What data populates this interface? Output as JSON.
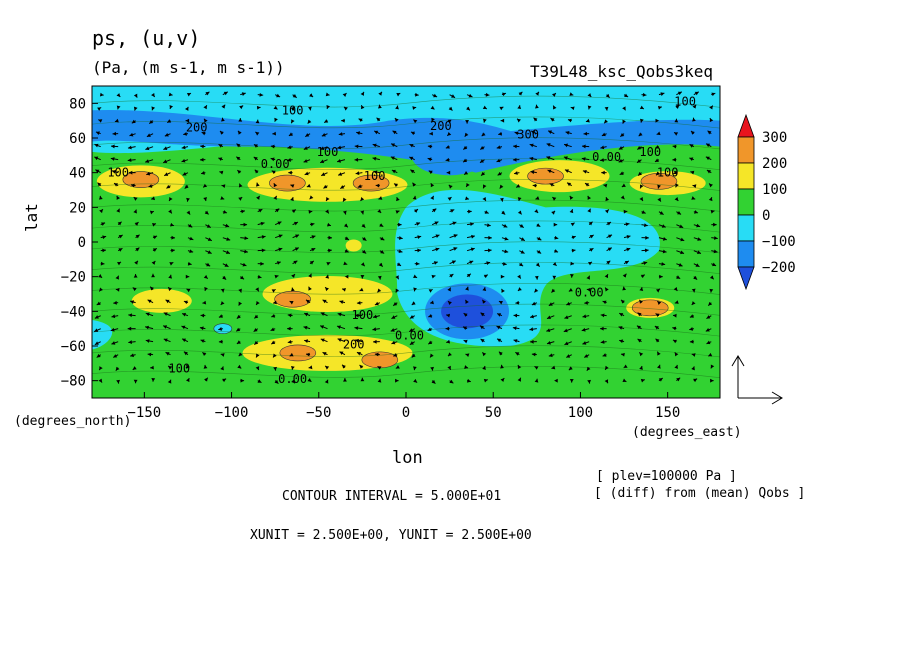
{
  "header": {
    "title": "ps, (u,v)",
    "units": "(Pa, (m s-1, m s-1))",
    "run_name": "T39L48_ksc_Qobs3keq"
  },
  "footer": {
    "contour_interval": "CONTOUR INTERVAL = 5.000E+01",
    "vector_units": "XUNIT = 2.500E+00, YUNIT = 2.500E+00",
    "plev_note": "[ plev=100000 Pa ]",
    "diff_note": "[ (diff) from (mean) Qobs ]"
  },
  "chart_data": {
    "type": "heatmap",
    "title": "ps, (u,v)",
    "subtitle": "(Pa, (m s-1, m s-1))",
    "xlabel": "lon",
    "ylabel": "lat",
    "x_unit_label": "(degrees_east)",
    "y_unit_label": "(degrees_north)",
    "xlim": [
      -180,
      180
    ],
    "ylim": [
      -90,
      90
    ],
    "x_ticks": [
      -150,
      -100,
      -50,
      0,
      50,
      100,
      150
    ],
    "y_ticks": [
      80,
      60,
      40,
      20,
      0,
      -20,
      -40,
      -60,
      -80
    ],
    "colorbar": {
      "levels": [
        300,
        200,
        100,
        0,
        -100,
        -200
      ],
      "labels": [
        "300",
        "200",
        "100",
        "0",
        "-100",
        "-200"
      ],
      "colors": {
        "above_300": "#e8141e",
        "200_300": "#f0962a",
        "100_200": "#f5e628",
        "0_100": "#32d232",
        "-100_0": "#28dcf5",
        "-200_-100": "#1e8cf0",
        "below_-200": "#1e50dc"
      }
    },
    "contour_labels": [
      {
        "text": "200",
        "lon": -120,
        "lat": 66
      },
      {
        "text": "100",
        "lon": -65,
        "lat": 76
      },
      {
        "text": "100",
        "lon": -45,
        "lat": 52
      },
      {
        "text": "100",
        "lon": -165,
        "lat": 40
      },
      {
        "text": "0.00",
        "lon": -75,
        "lat": 45
      },
      {
        "text": "100",
        "lon": -18,
        "lat": 38
      },
      {
        "text": "200",
        "lon": 20,
        "lat": 67
      },
      {
        "text": "300",
        "lon": 70,
        "lat": 62
      },
      {
        "text": "0.00",
        "lon": 115,
        "lat": 49
      },
      {
        "text": "100",
        "lon": 140,
        "lat": 52
      },
      {
        "text": "100",
        "lon": 150,
        "lat": 40
      },
      {
        "text": "100",
        "lon": 160,
        "lat": 81
      },
      {
        "text": "0.00",
        "lon": 105,
        "lat": -29
      },
      {
        "text": "100",
        "lon": -25,
        "lat": -42
      },
      {
        "text": "0.00",
        "lon": 2,
        "lat": -54
      },
      {
        "text": "200",
        "lon": -30,
        "lat": -59
      },
      {
        "text": "100",
        "lon": -130,
        "lat": -73
      },
      {
        "text": "0.00",
        "lon": -65,
        "lat": -79
      }
    ],
    "features": [
      {
        "kind": "high",
        "level": "200_300",
        "lon": -152,
        "lat": 36
      },
      {
        "kind": "high",
        "level": "200_300",
        "lon": -68,
        "lat": 34
      },
      {
        "kind": "high",
        "level": "200_300",
        "lon": -20,
        "lat": 34
      },
      {
        "kind": "high",
        "level": "200_300",
        "lon": 80,
        "lat": 38
      },
      {
        "kind": "high",
        "level": "200_300",
        "lon": 145,
        "lat": 35
      },
      {
        "kind": "high",
        "level": "200_300",
        "lon": -62,
        "lat": -64
      },
      {
        "kind": "high",
        "level": "200_300",
        "lon": -15,
        "lat": -68
      },
      {
        "kind": "high",
        "level": "200_300",
        "lon": -65,
        "lat": -33
      },
      {
        "kind": "high",
        "level": "200_300",
        "lon": 140,
        "lat": -38
      },
      {
        "kind": "low",
        "level": "below_-200",
        "lon": 35,
        "lat": -40
      },
      {
        "kind": "low",
        "level": "below_-200",
        "lon": 25,
        "lat": 53
      },
      {
        "kind": "low",
        "level": "-200_-100",
        "lon": -105,
        "lat": -50
      },
      {
        "kind": "low",
        "level": "-200_-100",
        "lon": -175,
        "lat": -55
      }
    ],
    "vector_reference": {
      "xunit": 2.5,
      "yunit": 2.5
    },
    "grid": false
  }
}
